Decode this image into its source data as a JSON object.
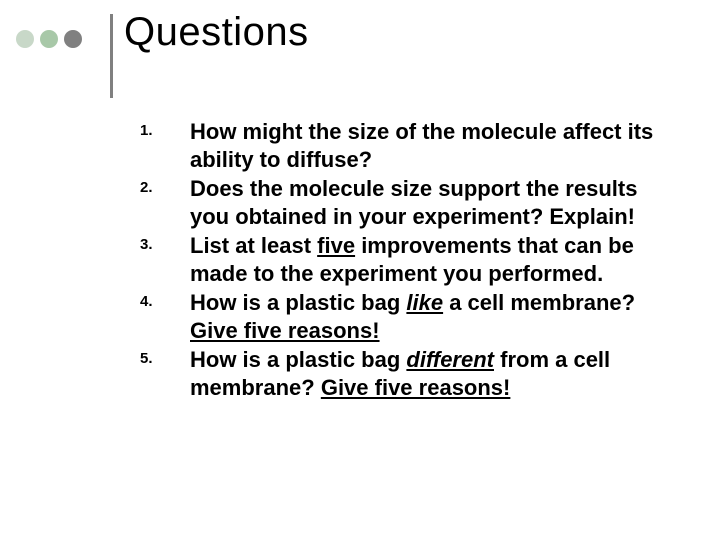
{
  "title": "Questions",
  "dots": {
    "colors": [
      "#c8d8c8",
      "#a8c8a8",
      "#808080"
    ],
    "size": 18,
    "gap": 6
  },
  "divider": {
    "color": "#808080",
    "width": 3,
    "height": 84
  },
  "typography": {
    "title_fontsize": 40,
    "title_weight": 400,
    "body_fontsize": 22,
    "body_weight": 700,
    "number_fontsize": 15,
    "font_family": "Arial"
  },
  "background_color": "#ffffff",
  "text_color": "#000000",
  "questions": [
    {
      "number": "1.",
      "segments": [
        {
          "text": "How might the size of the molecule affect its ability to diffuse?"
        }
      ]
    },
    {
      "number": "2.",
      "segments": [
        {
          "text": "Does the molecule size support the results you obtained in your experiment?  Explain!"
        }
      ]
    },
    {
      "number": "3.",
      "segments": [
        {
          "text": "List at least "
        },
        {
          "text": "five",
          "underline": true
        },
        {
          "text": " improvements that can be made to the experiment you performed."
        }
      ]
    },
    {
      "number": "4.",
      "segments": [
        {
          "text": "How is a plastic bag "
        },
        {
          "text": "like",
          "underline": true,
          "italic": true
        },
        {
          "text": " a cell membrane?  "
        },
        {
          "text": "Give five reasons!",
          "underline": true
        }
      ]
    },
    {
      "number": "5.",
      "segments": [
        {
          "text": "How is a plastic bag "
        },
        {
          "text": "different",
          "underline": true,
          "italic": true
        },
        {
          "text": " from a cell membrane?  "
        },
        {
          "text": "Give five reasons!",
          "underline": true
        }
      ]
    }
  ]
}
